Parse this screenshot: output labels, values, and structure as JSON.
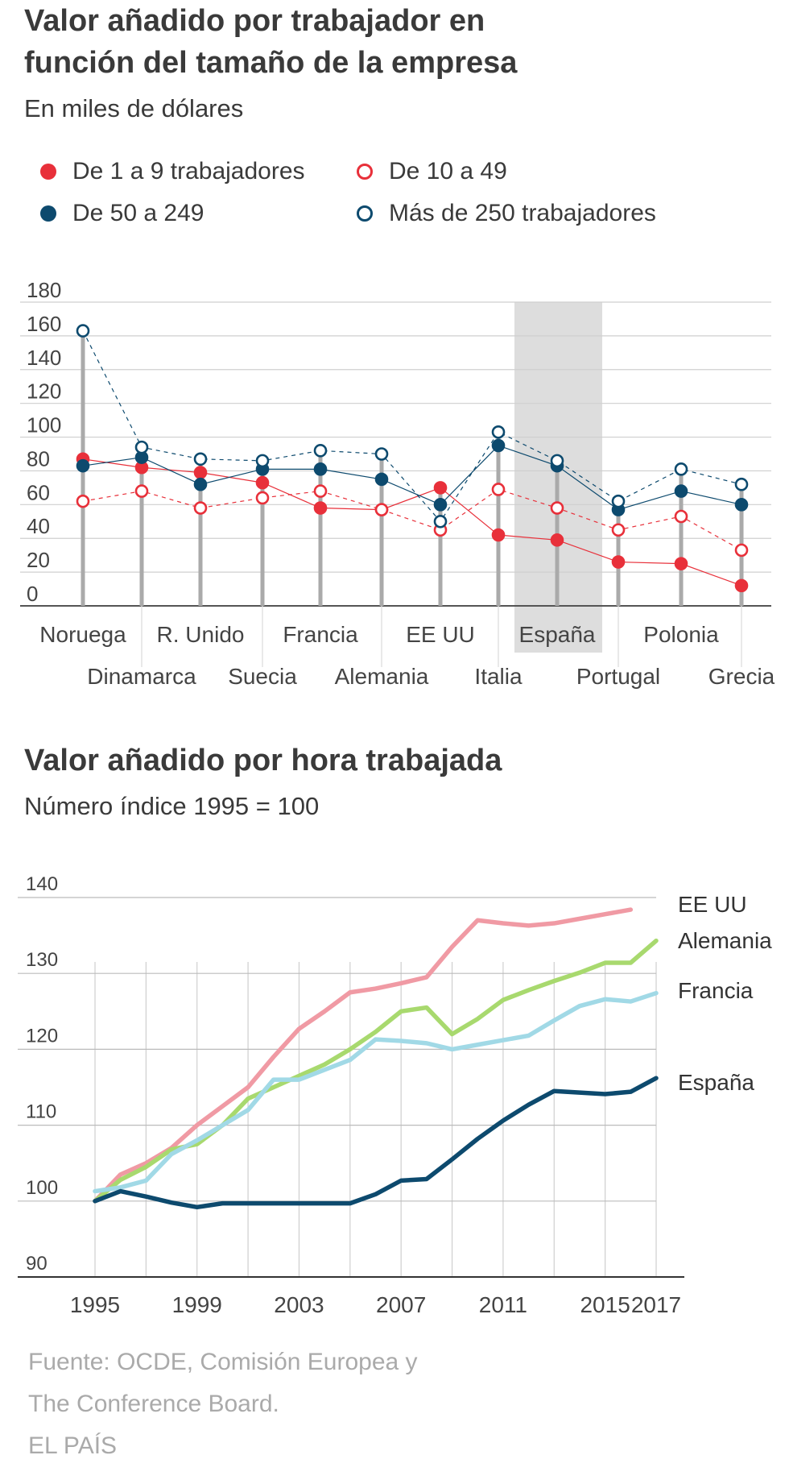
{
  "chart1": {
    "title_line1": "Valor añadido por trabajador en",
    "title_line2": "función del tamaño de la empresa",
    "subtitle": "En miles de dólares",
    "legend": [
      {
        "label": "De 1 a 9 trabajadores",
        "color": "#e8303a",
        "style": "filled"
      },
      {
        "label": "De 10 a 49",
        "color": "#e8303a",
        "style": "hollow"
      },
      {
        "label": "De 50 a 249",
        "color": "#0d4a6e",
        "style": "filled"
      },
      {
        "label": "Más de 250 trabajadores",
        "color": "#0d4a6e",
        "style": "hollow"
      }
    ]
  },
  "chart2": {
    "title": "Valor añadido por hora trabajada",
    "subtitle": "Número índice 1995 = 100"
  },
  "source": {
    "line1": "Fuente: OCDE, Comisión Europea y",
    "line2": "The Conference Board.",
    "line3": "EL PAÍS"
  },
  "chart_data": [
    {
      "type": "scatter",
      "title": "Valor añadido por trabajador en función del tamaño de la empresa",
      "ylabel": "En miles de dólares",
      "ylim": [
        0,
        180
      ],
      "yticks": [
        0,
        20,
        40,
        60,
        80,
        100,
        120,
        140,
        160,
        180
      ],
      "categories": [
        "Noruega",
        "Dinamarca",
        "R. Unido",
        "Suecia",
        "Francia",
        "Alemania",
        "EE UU",
        "Italia",
        "España",
        "Portugal",
        "Polonia",
        "Grecia"
      ],
      "highlight": "España",
      "series": [
        {
          "name": "De 1 a 9 trabajadores",
          "values": [
            87,
            82,
            79,
            73,
            58,
            57,
            70,
            42,
            39,
            26,
            25,
            12
          ]
        },
        {
          "name": "De 10 a 49",
          "values": [
            62,
            68,
            58,
            64,
            68,
            57,
            45,
            69,
            58,
            45,
            53,
            33
          ]
        },
        {
          "name": "De 50 a 249",
          "values": [
            83,
            88,
            72,
            81,
            81,
            75,
            60,
            95,
            83,
            57,
            68,
            60
          ]
        },
        {
          "name": "Más de 250 trabajadores",
          "values": [
            163,
            94,
            87,
            86,
            92,
            90,
            50,
            103,
            86,
            62,
            81,
            72
          ]
        }
      ]
    },
    {
      "type": "line",
      "title": "Valor añadido por hora trabajada",
      "ylabel": "Número índice 1995 = 100",
      "ylim": [
        90,
        140
      ],
      "yticks": [
        90,
        100,
        110,
        120,
        130,
        140
      ],
      "xticks": [
        1995,
        1999,
        2003,
        2007,
        2011,
        2015,
        2017
      ],
      "series": [
        {
          "name": "EE UU",
          "color": "#f09aa4",
          "x": [
            1995,
            1996,
            1997,
            1998,
            1999,
            2000,
            2001,
            2002,
            2003,
            2004,
            2005,
            2006,
            2007,
            2008,
            2009,
            2010,
            2011,
            2012,
            2013,
            2014,
            2015,
            2016
          ],
          "values": [
            100,
            103.5,
            105,
            107,
            110,
            112.5,
            115,
            119,
            122.7,
            125,
            127.5,
            128,
            128.7,
            129.5,
            133.5,
            137,
            136.6,
            136.3,
            136.6,
            137.2,
            137.8,
            138.4
          ]
        },
        {
          "name": "Alemania",
          "color": "#a8d96e",
          "x": [
            1995,
            1996,
            1997,
            1998,
            1999,
            2000,
            2001,
            2002,
            2003,
            2004,
            2005,
            2006,
            2007,
            2008,
            2009,
            2010,
            2011,
            2012,
            2013,
            2014,
            2015,
            2016,
            2017
          ],
          "values": [
            100,
            102.8,
            104.5,
            106.8,
            107.5,
            110,
            113.5,
            115,
            116.5,
            118,
            120,
            122.3,
            125,
            125.5,
            122,
            124,
            126.5,
            127.8,
            129,
            130.1,
            131.4,
            131.4,
            134.3
          ]
        },
        {
          "name": "Francia",
          "color": "#a1d9e6",
          "x": [
            1995,
            1996,
            1997,
            1998,
            1999,
            2000,
            2001,
            2002,
            2003,
            2004,
            2005,
            2006,
            2007,
            2008,
            2009,
            2010,
            2011,
            2012,
            2013,
            2014,
            2015,
            2016,
            2017
          ],
          "values": [
            101.3,
            101.8,
            102.7,
            106.2,
            108,
            110,
            112,
            116,
            116,
            117.3,
            118.6,
            121.3,
            121.1,
            120.8,
            120,
            120.6,
            121.2,
            121.8,
            123.8,
            125.7,
            126.6,
            126.3,
            127.4
          ]
        },
        {
          "name": "España",
          "color": "#0d4a6e",
          "x": [
            1995,
            1996,
            1997,
            1998,
            1999,
            2000,
            2001,
            2002,
            2003,
            2004,
            2005,
            2006,
            2007,
            2008,
            2009,
            2010,
            2011,
            2012,
            2013,
            2014,
            2015,
            2016,
            2017
          ],
          "values": [
            100,
            101.3,
            100.6,
            99.8,
            99.2,
            99.7,
            99.7,
            99.7,
            99.7,
            99.7,
            99.7,
            100.9,
            102.7,
            102.9,
            105.5,
            108.2,
            110.6,
            112.7,
            114.5,
            114.3,
            114.1,
            114.4,
            116.2
          ]
        }
      ]
    }
  ]
}
